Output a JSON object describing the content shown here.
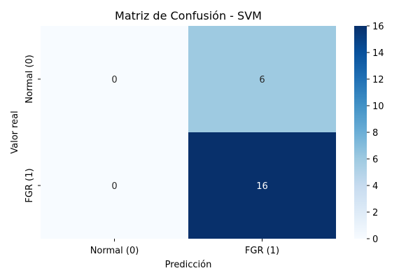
{
  "chart_data": {
    "type": "heatmap",
    "title": "Matriz de Confusión - SVM",
    "xlabel": "Predicción",
    "ylabel": "Valor real",
    "x_categories": [
      "Normal (0)",
      "FGR (1)"
    ],
    "y_categories": [
      "Normal (0)",
      "FGR (1)"
    ],
    "values": [
      [
        0,
        6
      ],
      [
        0,
        16
      ]
    ],
    "colormap": "Blues",
    "colorbar": {
      "min": 0,
      "max": 16,
      "ticks": [
        0,
        2,
        4,
        6,
        8,
        10,
        12,
        14,
        16
      ]
    },
    "colors": {
      "low": "#f7fbff",
      "high": "#08306b"
    }
  }
}
